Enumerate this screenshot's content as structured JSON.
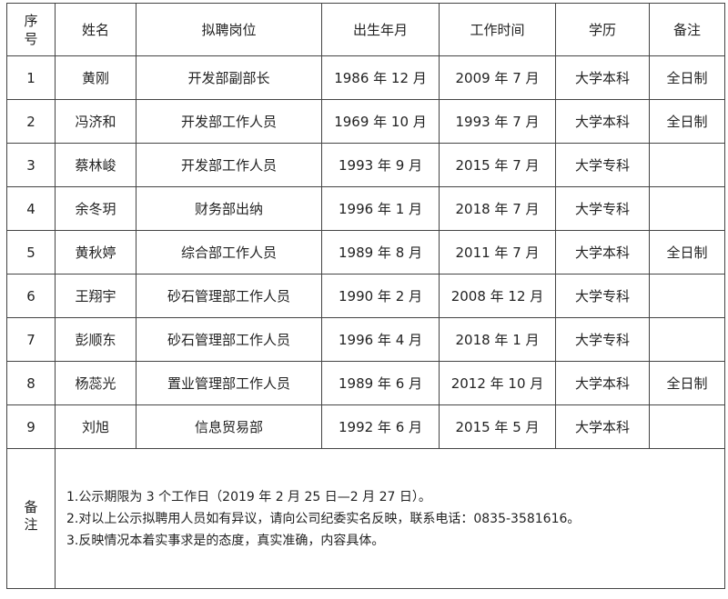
{
  "headers": [
    "序号",
    "姓名",
    "拟聘岗位",
    "出生年月",
    "工作时间",
    "学历",
    "备注"
  ],
  "rows": [
    [
      "1",
      "黄刚",
      "开发部副部长",
      "1986 年 12 月",
      "2009 年 7 月",
      "大学本科",
      "全日制"
    ],
    [
      "2",
      "冯济和",
      "开发部工作人员",
      "1969 年 10 月",
      "1993 年 7 月",
      "大学本科",
      "全日制"
    ],
    [
      "3",
      "蔡林峻",
      "开发部工作人员",
      "1993 年 9 月",
      "2015 年 7 月",
      "大学专科",
      ""
    ],
    [
      "4",
      "余冬玥",
      "财务部出纳",
      "1996 年 1 月",
      "2018 年 7 月",
      "大学专科",
      ""
    ],
    [
      "5",
      "黄秋婷",
      "综合部工作人员",
      "1989 年 8 月",
      "2011 年 7 月",
      "大学本科",
      "全日制"
    ],
    [
      "6",
      "王翔宇",
      "砂石管理部工作人员",
      "1990 年 2 月",
      "2008 年 12 月",
      "大学专科",
      ""
    ],
    [
      "7",
      "彭顺东",
      "砂石管理部工作人员",
      "1996 年 4 月",
      "2018 年 1 月",
      "大学专科",
      ""
    ],
    [
      "8",
      "杨蕊光",
      "置业管理部工作人员",
      "1989 年 6 月",
      "2012 年 10 月",
      "大学本科",
      "全日制"
    ],
    [
      "9",
      "刘旭",
      "信息贸易部",
      "1992 年 6 月",
      "2015 年 5 月",
      "大学本科",
      ""
    ]
  ],
  "notes": {
    "label": "备注",
    "lines": [
      "1.公示期限为 3 个工作日（2019 年 2 月 25 日—2 月 27 日）。",
      "2.对以上公示拟聘用人员如有异议，请向公司纪委实名反映，联系电话：0835-3581616。",
      "3.反映情况本着实事求是的态度，真实准确，内容具体。"
    ]
  }
}
